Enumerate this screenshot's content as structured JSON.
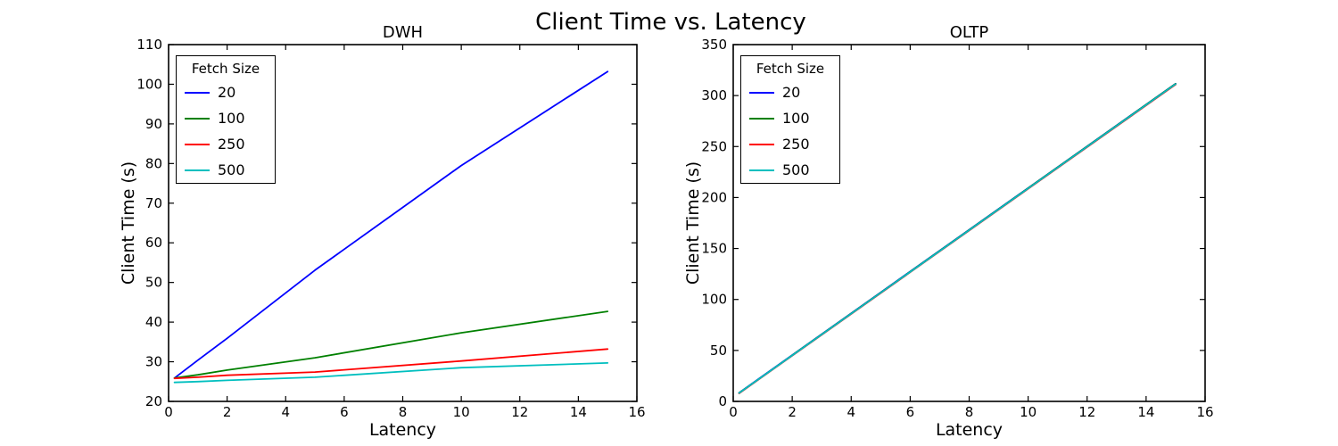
{
  "figure": {
    "title": "Client Time vs. Latency",
    "background_color": "#ffffff",
    "text_color": "#000000"
  },
  "legend": {
    "title": "Fetch Size",
    "position": "upper left",
    "entries": [
      {
        "label": "20",
        "color": "#0000ff"
      },
      {
        "label": "100",
        "color": "#008000"
      },
      {
        "label": "250",
        "color": "#ff0000"
      },
      {
        "label": "500",
        "color": "#00bfbf"
      }
    ]
  },
  "chart_data": [
    {
      "type": "line",
      "title": "DWH",
      "xlabel": "Latency",
      "ylabel": "Client Time (s)",
      "xlim": [
        0,
        16
      ],
      "ylim": [
        20,
        110
      ],
      "xticks": [
        0,
        2,
        4,
        6,
        8,
        10,
        12,
        14,
        16
      ],
      "yticks": [
        20,
        30,
        40,
        50,
        60,
        70,
        80,
        90,
        100,
        110
      ],
      "grid": false,
      "legend_position": "upper left",
      "x": [
        0.2,
        1,
        2,
        5,
        10,
        15
      ],
      "series": [
        {
          "name": "20",
          "color": "#0000ff",
          "values": [
            25.9,
            30.4,
            35.9,
            53.1,
            79.5,
            103.2
          ]
        },
        {
          "name": "100",
          "color": "#008000",
          "values": [
            25.9,
            26.7,
            27.9,
            31.0,
            37.3,
            42.7
          ]
        },
        {
          "name": "250",
          "color": "#ff0000",
          "values": [
            25.8,
            26.1,
            26.6,
            27.4,
            30.2,
            33.2
          ]
        },
        {
          "name": "500",
          "color": "#00bfbf",
          "values": [
            24.8,
            25.0,
            25.3,
            26.1,
            28.5,
            29.7
          ]
        }
      ]
    },
    {
      "type": "line",
      "title": "OLTP",
      "xlabel": "Latency",
      "ylabel": "Client Time (s)",
      "xlim": [
        0,
        16
      ],
      "ylim": [
        0,
        350
      ],
      "xticks": [
        0,
        2,
        4,
        6,
        8,
        10,
        12,
        14,
        16
      ],
      "yticks": [
        0,
        50,
        100,
        150,
        200,
        250,
        300,
        350
      ],
      "grid": false,
      "legend_position": "upper left",
      "x": [
        0.2,
        1,
        2,
        5,
        10,
        15
      ],
      "series": [
        {
          "name": "20",
          "color": "#0000ff",
          "values": [
            8.5,
            24.9,
            45.4,
            106.9,
            209.3,
            311.7
          ]
        },
        {
          "name": "100",
          "color": "#008000",
          "values": [
            8.3,
            24.7,
            45.2,
            106.7,
            209.1,
            311.5
          ]
        },
        {
          "name": "250",
          "color": "#ff0000",
          "values": [
            7.9,
            24.3,
            44.8,
            106.2,
            208.5,
            310.8
          ]
        },
        {
          "name": "500",
          "color": "#00bfbf",
          "values": [
            8.2,
            24.6,
            45.1,
            106.5,
            208.9,
            311.2
          ]
        }
      ]
    }
  ]
}
